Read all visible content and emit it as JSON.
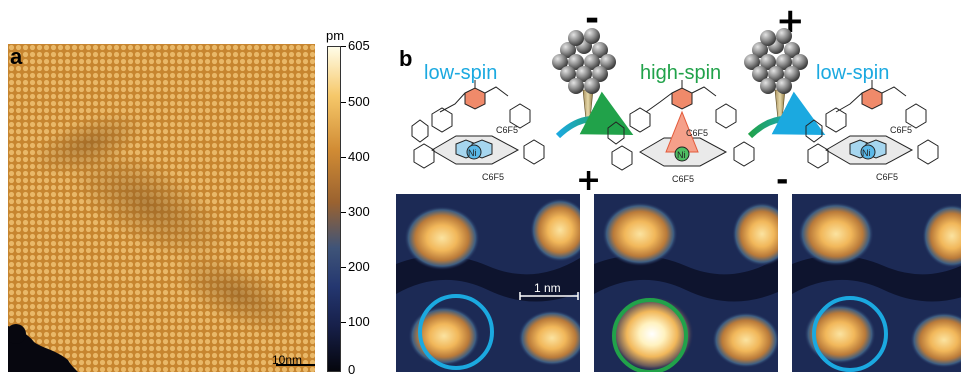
{
  "panels": {
    "a": {
      "label": "a",
      "colorbar": {
        "unit": "pm",
        "max_label": "605",
        "ticks": [
          "500",
          "400",
          "300",
          "200",
          "100",
          "0"
        ]
      },
      "scale_bar": "10nm"
    },
    "b": {
      "label": "b",
      "states": [
        {
          "label": "low-spin",
          "color": "#1ba9e0"
        },
        {
          "label": "high-spin",
          "color": "#21a24a"
        },
        {
          "label": "low-spin",
          "color": "#1ba9e0"
        }
      ],
      "tip_signs": [
        "-",
        "+"
      ],
      "image_signs": [
        "+",
        "-"
      ],
      "metal_label": "Ni",
      "substituent_label": "C6F5",
      "scale_bar": "1 nm"
    }
  },
  "colors": {
    "low_spin": "#1ba9e0",
    "high_spin": "#21a24a",
    "arrow": "#1a9e8a",
    "stm_bright": "#f7d27a",
    "stm_dark": "#1a2452"
  }
}
